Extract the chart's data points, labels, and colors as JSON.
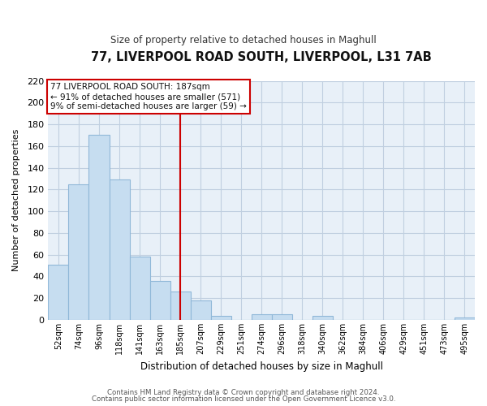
{
  "title": "77, LIVERPOOL ROAD SOUTH, LIVERPOOL, L31 7AB",
  "subtitle": "Size of property relative to detached houses in Maghull",
  "xlabel": "Distribution of detached houses by size in Maghull",
  "ylabel": "Number of detached properties",
  "bar_labels": [
    "52sqm",
    "74sqm",
    "96sqm",
    "118sqm",
    "141sqm",
    "163sqm",
    "185sqm",
    "207sqm",
    "229sqm",
    "251sqm",
    "274sqm",
    "296sqm",
    "318sqm",
    "340sqm",
    "362sqm",
    "384sqm",
    "406sqm",
    "429sqm",
    "451sqm",
    "473sqm",
    "495sqm"
  ],
  "bar_heights": [
    51,
    125,
    170,
    129,
    58,
    36,
    26,
    18,
    4,
    0,
    5,
    5,
    0,
    4,
    0,
    0,
    0,
    0,
    0,
    0,
    2
  ],
  "bar_color": "#c6ddf0",
  "bar_edge_color": "#90b8d8",
  "vline_x": 6,
  "vline_color": "#cc0000",
  "ylim": [
    0,
    220
  ],
  "yticks": [
    0,
    20,
    40,
    60,
    80,
    100,
    120,
    140,
    160,
    180,
    200,
    220
  ],
  "annotation_title": "77 LIVERPOOL ROAD SOUTH: 187sqm",
  "annotation_line1": "← 91% of detached houses are smaller (571)",
  "annotation_line2": "9% of semi-detached houses are larger (59) →",
  "annotation_box_color": "#ffffff",
  "annotation_box_edge": "#cc0000",
  "footer1": "Contains HM Land Registry data © Crown copyright and database right 2024.",
  "footer2": "Contains public sector information licensed under the Open Government Licence v3.0.",
  "bg_color": "#ffffff",
  "plot_bg_color": "#e8f0f8",
  "grid_color": "#c0cfe0"
}
